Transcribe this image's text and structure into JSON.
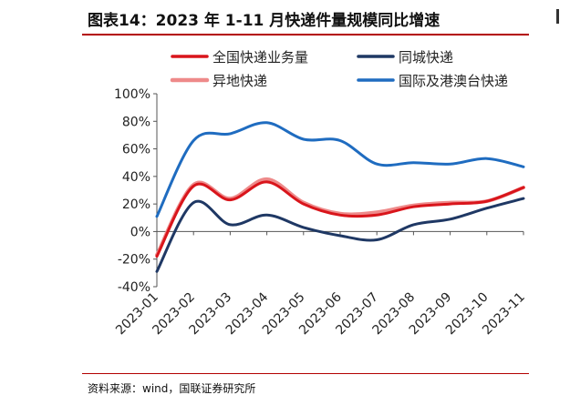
{
  "header": {
    "title": "图表14：2023 年 1-11 月快递件量规模同比增速"
  },
  "footer": {
    "source": "资料来源：wind，国联证券研究所"
  },
  "chart_data": {
    "type": "line",
    "title": "",
    "xlabel": "",
    "ylabel": "",
    "categories": [
      "2023-01",
      "2023-02",
      "2023-03",
      "2023-04",
      "2023-05",
      "2023-06",
      "2023-07",
      "2023-08",
      "2023-09",
      "2023-10",
      "2023-11"
    ],
    "ylim": [
      -40,
      100
    ],
    "yticks": [
      -40,
      -20,
      0,
      20,
      40,
      60,
      80,
      100
    ],
    "ytick_labels": [
      "-40%",
      "-20%",
      "0%",
      "20%",
      "40%",
      "60%",
      "80%",
      "100%"
    ],
    "grid": false,
    "legend_position": "top",
    "series": [
      {
        "name": "全国快递业务量",
        "color": "#d9151b",
        "width": 3,
        "values": [
          -18,
          33,
          23,
          36,
          20,
          12,
          12,
          18,
          20,
          22,
          32
        ]
      },
      {
        "name": "异地快递",
        "color": "#ee8a8a",
        "width": 4,
        "values": [
          -17,
          34,
          24,
          38,
          21,
          13,
          14,
          19,
          21,
          22,
          32
        ]
      },
      {
        "name": "同城快递",
        "color": "#1f3864",
        "width": 3,
        "values": [
          -29,
          21,
          5,
          12,
          3,
          -3,
          -6,
          5,
          9,
          17,
          24
        ]
      },
      {
        "name": "国际及港澳台快递",
        "color": "#1f6cc0",
        "width": 3,
        "values": [
          11,
          66,
          71,
          79,
          67,
          66,
          49,
          50,
          49,
          53,
          47
        ]
      }
    ]
  }
}
